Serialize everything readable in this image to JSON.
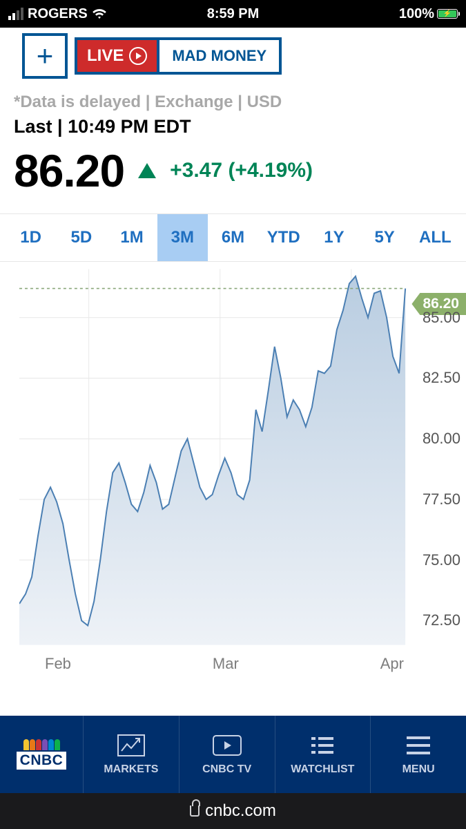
{
  "status": {
    "carrier": "ROGERS",
    "time": "8:59 PM",
    "battery_pct": "100%",
    "battery_fill_color": "#34c759"
  },
  "topbar": {
    "plus_label": "+",
    "live_label": "LIVE",
    "show_label": "MAD MONEY"
  },
  "header": {
    "delayed_line": "*Data is delayed | Exchange | USD",
    "last_line": "Last | 10:49 PM EDT"
  },
  "quote": {
    "last": "86.20",
    "change": "+3.47",
    "pct": "(+4.19%)",
    "change_color": "#008456"
  },
  "ranges": {
    "tabs": [
      "1D",
      "5D",
      "1M",
      "3M",
      "6M",
      "YTD",
      "1Y",
      "5Y",
      "ALL"
    ],
    "active_index": 3,
    "color": "#1f6fc0",
    "active_bg": "#a8cdf3"
  },
  "chart": {
    "type": "area",
    "ylim": [
      71.5,
      87.0
    ],
    "yticks": [
      72.5,
      75.0,
      77.5,
      80.0,
      82.5,
      85.0
    ],
    "x_labels": [
      "Feb",
      "Mar",
      "Apr"
    ],
    "line_color": "#4b7fb3",
    "fill_top": "#b9cde1",
    "fill_bottom": "#eef2f7",
    "grid_color": "#e9e9e9",
    "dash_color": "#8aa77a",
    "current": 86.2,
    "series": [
      73.2,
      73.6,
      74.3,
      76.0,
      77.5,
      78.0,
      77.4,
      76.5,
      75.0,
      73.6,
      72.5,
      72.3,
      73.3,
      75.0,
      77.0,
      78.6,
      79.0,
      78.2,
      77.3,
      77.0,
      77.8,
      78.9,
      78.2,
      77.1,
      77.3,
      78.4,
      79.5,
      80.0,
      79.0,
      78.0,
      77.5,
      77.7,
      78.5,
      79.2,
      78.6,
      77.7,
      77.5,
      78.3,
      81.2,
      80.3,
      82.0,
      83.8,
      82.5,
      80.9,
      81.6,
      81.2,
      80.5,
      81.3,
      82.8,
      82.7,
      83.0,
      84.5,
      85.3,
      86.4,
      86.7,
      85.8,
      85.0,
      86.0,
      86.1,
      85.0,
      83.4,
      82.7,
      86.2
    ]
  },
  "nav": {
    "items": [
      {
        "label": "MARKETS",
        "icon": "markets"
      },
      {
        "label": "CNBC TV",
        "icon": "tv"
      },
      {
        "label": "WATCHLIST",
        "icon": "watchlist"
      },
      {
        "label": "MENU",
        "icon": "menu"
      }
    ],
    "bg": "#002f6c",
    "logo_text": "CNBC"
  },
  "address": {
    "domain": "cnbc.com"
  }
}
